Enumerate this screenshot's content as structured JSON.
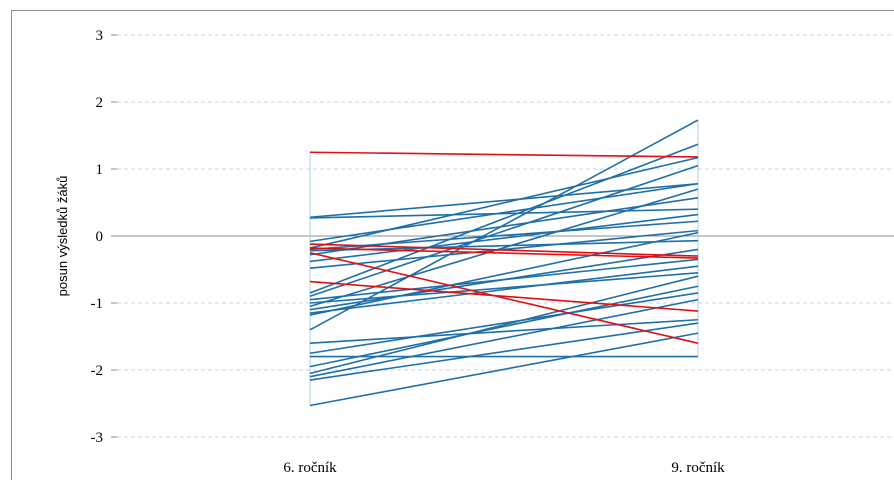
{
  "chart_data": {
    "type": "line",
    "title": "",
    "xlabel": "",
    "ylabel": "posun výsledků žáků",
    "categories": [
      "6. ročník",
      "9. ročník"
    ],
    "ylim": [
      -3,
      3
    ],
    "yticks": [
      "3",
      "2",
      "1",
      "0",
      "-1",
      "-2",
      "-3"
    ],
    "grid": true,
    "legend": "none",
    "colors": {
      "default": "#1f6fa8",
      "highlight": "#e01010",
      "grid": "#c8d6e6",
      "zero_axis": "#8c8c8c",
      "range": "#a9d3e0"
    },
    "series": [
      {
        "values": [
          1.25,
          1.18
        ],
        "color": "#e01010"
      },
      {
        "values": [
          -0.12,
          -0.3
        ],
        "color": "#e01010"
      },
      {
        "values": [
          -0.18,
          -0.33
        ],
        "color": "#e01010"
      },
      {
        "values": [
          -0.25,
          -1.6
        ],
        "color": "#e01010"
      },
      {
        "values": [
          -0.68,
          -1.12
        ],
        "color": "#e01010"
      },
      {
        "values": [
          0.28,
          0.78
        ],
        "color": "#1f6fa8"
      },
      {
        "values": [
          0.27,
          0.4
        ],
        "color": "#1f6fa8"
      },
      {
        "values": [
          -0.08,
          0.78
        ],
        "color": "#1f6fa8"
      },
      {
        "values": [
          -0.18,
          1.17
        ],
        "color": "#1f6fa8"
      },
      {
        "values": [
          -0.2,
          0.22
        ],
        "color": "#1f6fa8"
      },
      {
        "values": [
          -0.22,
          -0.07
        ],
        "color": "#1f6fa8"
      },
      {
        "values": [
          -0.28,
          0.57
        ],
        "color": "#1f6fa8"
      },
      {
        "values": [
          -0.38,
          0.32
        ],
        "color": "#1f6fa8"
      },
      {
        "values": [
          -0.48,
          0.08
        ],
        "color": "#1f6fa8"
      },
      {
        "values": [
          -0.85,
          1.37
        ],
        "color": "#1f6fa8"
      },
      {
        "values": [
          -0.9,
          1.05
        ],
        "color": "#1f6fa8"
      },
      {
        "values": [
          -0.95,
          -0.35
        ],
        "color": "#1f6fa8"
      },
      {
        "values": [
          -1.0,
          -0.55
        ],
        "color": "#1f6fa8"
      },
      {
        "values": [
          -1.05,
          0.7
        ],
        "color": "#1f6fa8"
      },
      {
        "values": [
          -1.1,
          -0.2
        ],
        "color": "#1f6fa8"
      },
      {
        "values": [
          -1.15,
          -0.45
        ],
        "color": "#1f6fa8"
      },
      {
        "values": [
          -1.18,
          0.05
        ],
        "color": "#1f6fa8"
      },
      {
        "values": [
          -1.4,
          1.73
        ],
        "color": "#1f6fa8"
      },
      {
        "values": [
          -1.6,
          -1.25
        ],
        "color": "#1f6fa8"
      },
      {
        "values": [
          -1.75,
          -0.85
        ],
        "color": "#1f6fa8"
      },
      {
        "values": [
          -1.8,
          -1.8
        ],
        "color": "#1f6fa8"
      },
      {
        "values": [
          -1.95,
          -0.75
        ],
        "color": "#1f6fa8"
      },
      {
        "values": [
          -2.05,
          -0.6
        ],
        "color": "#1f6fa8"
      },
      {
        "values": [
          -2.1,
          -0.95
        ],
        "color": "#1f6fa8"
      },
      {
        "values": [
          -2.15,
          -1.3
        ],
        "color": "#1f6fa8"
      },
      {
        "values": [
          -2.53,
          -1.45
        ],
        "color": "#1f6fa8"
      }
    ],
    "range": {
      "categories": [
        "6. ročník",
        "9. ročník"
      ],
      "min": [
        -2.53,
        -1.8
      ],
      "max": [
        1.25,
        1.73
      ]
    }
  }
}
